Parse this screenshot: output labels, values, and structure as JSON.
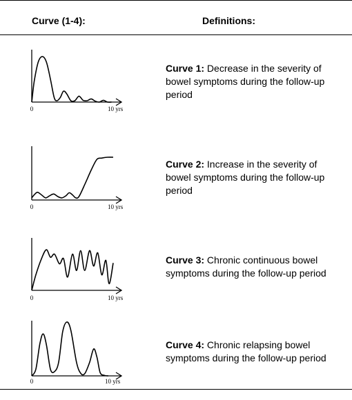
{
  "header": {
    "curve_col": "Curve (1-4):",
    "def_col": "Definitions:"
  },
  "rows": [
    {
      "name": "Curve 1:",
      "definition": "Decrease in the severity of bowel symptoms during the follow-up period",
      "axis_start": "0",
      "axis_end": "10 yrs",
      "curve": [
        [
          0,
          0
        ],
        [
          0.3,
          0.45
        ],
        [
          0.8,
          0.88
        ],
        [
          1.3,
          1.0
        ],
        [
          1.8,
          0.88
        ],
        [
          2.3,
          0.5
        ],
        [
          2.75,
          0.1
        ],
        [
          3.1,
          0.03
        ],
        [
          3.5,
          0.1
        ],
        [
          3.9,
          0.24
        ],
        [
          4.3,
          0.18
        ],
        [
          4.8,
          0.03
        ],
        [
          5.3,
          0.03
        ],
        [
          5.8,
          0.13
        ],
        [
          6.3,
          0.04
        ],
        [
          6.8,
          0.03
        ],
        [
          7.3,
          0.07
        ],
        [
          7.8,
          0.02
        ],
        [
          8.3,
          0.0
        ],
        [
          8.8,
          0.04
        ],
        [
          9.3,
          0.0
        ],
        [
          9.8,
          0.0
        ]
      ]
    },
    {
      "name": "Curve 2:",
      "definition": "Increase in the severity of bowel symptoms during the follow-up period",
      "axis_start": "0",
      "axis_end": "10 yrs",
      "curve": [
        [
          0,
          0.05
        ],
        [
          0.3,
          0.12
        ],
        [
          0.7,
          0.18
        ],
        [
          1.2,
          0.12
        ],
        [
          1.7,
          0.05
        ],
        [
          2.2,
          0.1
        ],
        [
          2.7,
          0.14
        ],
        [
          3.2,
          0.08
        ],
        [
          3.7,
          0.05
        ],
        [
          4.2,
          0.1
        ],
        [
          4.6,
          0.17
        ],
        [
          5.0,
          0.12
        ],
        [
          5.4,
          0.05
        ],
        [
          5.8,
          0.08
        ],
        [
          6.5,
          0.36
        ],
        [
          7.3,
          0.7
        ],
        [
          8.0,
          0.95
        ],
        [
          8.6,
          0.98
        ],
        [
          9.3,
          1.0
        ],
        [
          10.0,
          1.0
        ]
      ]
    },
    {
      "name": "Curve 3:",
      "definition": "Chronic continuous bowel symptoms during the follow-up period",
      "axis_start": "0",
      "axis_end": "10 yrs",
      "curve": [
        [
          0,
          0
        ],
        [
          0.5,
          0.35
        ],
        [
          1.2,
          0.72
        ],
        [
          1.8,
          0.92
        ],
        [
          2.3,
          0.75
        ],
        [
          2.8,
          0.82
        ],
        [
          3.4,
          0.6
        ],
        [
          3.9,
          0.72
        ],
        [
          4.4,
          0.3
        ],
        [
          5.0,
          0.82
        ],
        [
          5.5,
          0.45
        ],
        [
          6.0,
          0.9
        ],
        [
          6.5,
          0.45
        ],
        [
          7.1,
          0.9
        ],
        [
          7.6,
          0.55
        ],
        [
          8.1,
          0.85
        ],
        [
          8.6,
          0.35
        ],
        [
          9.1,
          0.68
        ],
        [
          9.5,
          0.15
        ],
        [
          10.0,
          0.62
        ]
      ]
    },
    {
      "name": "Curve 4:",
      "definition": "Chronic relapsing bowel symptoms during the follow-up period",
      "axis_start": "0",
      "axis_end": "10 yrs",
      "curve": [
        [
          0,
          0
        ],
        [
          0.5,
          0.12
        ],
        [
          1.0,
          0.6
        ],
        [
          1.4,
          0.78
        ],
        [
          1.8,
          0.58
        ],
        [
          2.3,
          0.12
        ],
        [
          2.8,
          0.08
        ],
        [
          3.3,
          0.25
        ],
        [
          3.8,
          0.82
        ],
        [
          4.3,
          1.0
        ],
        [
          4.8,
          0.85
        ],
        [
          5.5,
          0.25
        ],
        [
          6.0,
          0.05
        ],
        [
          6.5,
          0.04
        ],
        [
          7.1,
          0.25
        ],
        [
          7.6,
          0.5
        ],
        [
          8.0,
          0.35
        ],
        [
          8.4,
          0.06
        ],
        [
          8.9,
          0.01
        ],
        [
          9.4,
          0.0
        ]
      ]
    }
  ]
}
